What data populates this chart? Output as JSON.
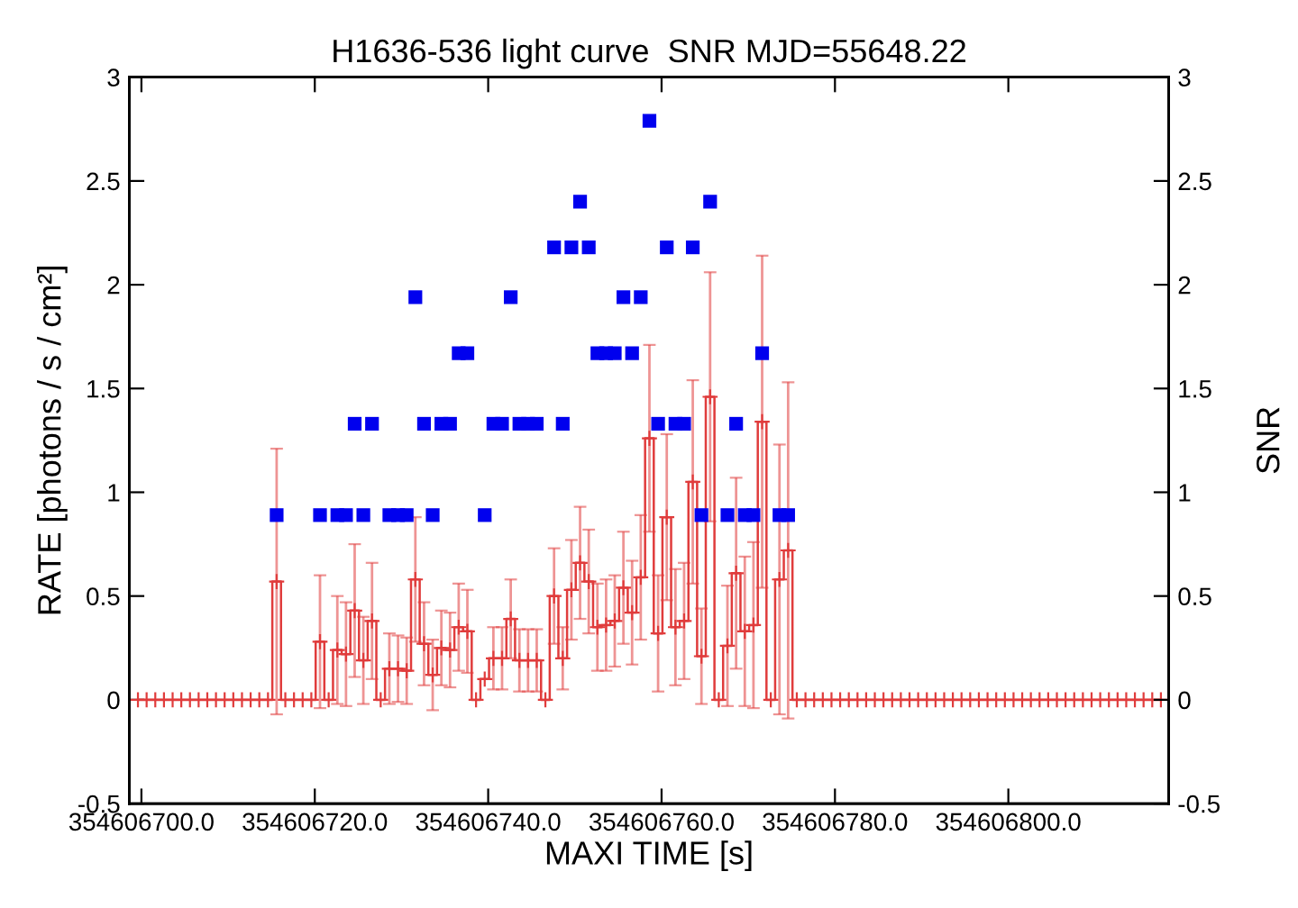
{
  "chart_data": {
    "type": "step",
    "title": "H1636-536 light curve  SNR MJD=55648.22",
    "xlabel": "MAXI TIME [s]",
    "ylabel": "RATE [photons / s / cm²]",
    "y2label": "SNR",
    "xlim": [
      354606698.6,
      354606818.5
    ],
    "xticks": [
      {
        "value": 354606700,
        "label": "354606700.0"
      },
      {
        "value": 354606720,
        "label": "354606720.0"
      },
      {
        "value": 354606740,
        "label": "354606740.0"
      },
      {
        "value": 354606760,
        "label": "354606760.0"
      },
      {
        "value": 354606780,
        "label": "354606780.0"
      },
      {
        "value": 354606800,
        "label": "354606800.0"
      }
    ],
    "ylim": [
      -0.5,
      3
    ],
    "yticks": [
      -0.5,
      0,
      0.5,
      1,
      1.5,
      2,
      2.5,
      3
    ],
    "y2lim": [
      -0.5,
      3
    ],
    "y2ticks": [
      -0.5,
      0,
      0.5,
      1,
      1.5,
      2,
      2.5,
      3
    ],
    "grid": false,
    "series": [
      {
        "color": "#e03c3c",
        "marker": "cross",
        "x": [
          354606699.6,
          354606700.6,
          354606701.6,
          354606702.6,
          354606703.6,
          354606704.6,
          354606705.6,
          354606706.6,
          354606707.6,
          354606708.6,
          354606709.6,
          354606710.6,
          354606711.6,
          354606712.6,
          354606713.6,
          354606714.6,
          354606715.6,
          354606716.6,
          354606717.6,
          354606718.6,
          354606719.6,
          354606720.6,
          354606721.6,
          354606722.6,
          354606723.6,
          354606724.6,
          354606725.6,
          354606726.6,
          354606727.6,
          354606728.6,
          354606729.6,
          354606730.6,
          354606731.6,
          354606732.6,
          354606733.6,
          354606734.6,
          354606735.6,
          354606736.6,
          354606737.6,
          354606738.6,
          354606739.6,
          354606740.6,
          354606741.6,
          354606742.6,
          354606743.6,
          354606744.6,
          354606745.6,
          354606746.6,
          354606747.6,
          354606748.6,
          354606749.6,
          354606750.6,
          354606751.6,
          354606752.6,
          354606753.6,
          354606754.6,
          354606755.6,
          354606756.6,
          354606757.6,
          354606758.6,
          354606759.6,
          354606760.6,
          354606761.6,
          354606762.6,
          354606763.6,
          354606764.6,
          354606765.6,
          354606766.6,
          354606767.6,
          354606768.6,
          354606769.6,
          354606770.6,
          354606771.6,
          354606772.6,
          354606773.6,
          354606774.6,
          354606775.6,
          354606776.6,
          354606777.6,
          354606778.6,
          354606779.6,
          354606780.6,
          354606781.6,
          354606782.6,
          354606783.6,
          354606784.6,
          354606785.6,
          354606786.6,
          354606787.6,
          354606788.6,
          354606789.6,
          354606790.6,
          354606791.6,
          354606792.6,
          354606793.6,
          354606794.6,
          354606795.6,
          354606796.6,
          354606797.6,
          354606798.6,
          354606799.6,
          354606800.6,
          354606801.6,
          354606802.6,
          354606803.6,
          354606804.6,
          354606805.6,
          354606806.6,
          354606807.6,
          354606808.6,
          354606809.6,
          354606810.6,
          354606811.6,
          354606812.6,
          354606813.6,
          354606814.6,
          354606815.6,
          354606816.6,
          354606817.6
        ],
        "values": [
          0,
          0,
          0,
          0,
          0,
          0,
          0,
          0,
          0,
          0,
          0,
          0,
          0,
          0,
          0,
          0,
          0.57,
          0,
          0,
          0,
          0,
          0.28,
          0,
          0.24,
          0.22,
          0.43,
          0.19,
          0.38,
          0,
          0.15,
          0.15,
          0.14,
          0.58,
          0.27,
          0.12,
          0.25,
          0.24,
          0.35,
          0.33,
          0,
          0.1,
          0.2,
          0.2,
          0.39,
          0.19,
          0.19,
          0.19,
          0,
          0.5,
          0.2,
          0.53,
          0.66,
          0.57,
          0.35,
          0.36,
          0.38,
          0.54,
          0.42,
          0.59,
          1.26,
          0.32,
          0.88,
          0.35,
          0.38,
          1.05,
          0.21,
          1.46,
          0,
          0.26,
          0.61,
          0.33,
          0.36,
          1.34,
          0,
          0.58,
          0.72,
          0,
          0,
          0,
          0,
          0,
          0,
          0,
          0,
          0,
          0,
          0,
          0,
          0,
          0,
          0,
          0,
          0,
          0,
          0,
          0,
          0,
          0,
          0,
          0,
          0,
          0,
          0,
          0,
          0,
          0,
          0,
          0,
          0,
          0,
          0,
          0,
          0,
          0,
          0,
          0,
          0,
          0,
          0
        ],
        "errors": [
          null,
          null,
          null,
          null,
          null,
          null,
          null,
          null,
          null,
          null,
          null,
          null,
          null,
          null,
          null,
          null,
          0.64,
          null,
          null,
          null,
          null,
          0.32,
          null,
          0.26,
          0.25,
          0.32,
          0.21,
          0.28,
          null,
          0.17,
          0.16,
          0.16,
          0.3,
          0.2,
          0.17,
          0.18,
          0.18,
          0.21,
          0.2,
          null,
          null,
          0.15,
          0.15,
          0.19,
          0.15,
          0.15,
          0.15,
          null,
          0.23,
          0.15,
          0.24,
          0.27,
          0.25,
          0.21,
          0.22,
          0.22,
          0.27,
          0.25,
          0.3,
          0.45,
          0.28,
          0.4,
          0.28,
          0.28,
          0.49,
          0.23,
          0.6,
          null,
          0.29,
          0.46,
          0.36,
          0.4,
          0.8,
          null,
          0.65,
          0.81,
          null,
          null,
          null,
          null,
          null,
          null,
          null,
          null,
          null,
          null,
          null,
          null,
          null,
          null,
          null,
          null,
          null,
          null,
          null,
          null,
          null,
          null,
          null,
          null,
          null,
          null,
          null,
          null,
          null,
          null,
          null,
          null,
          null,
          null,
          null,
          null,
          null,
          null,
          null,
          null,
          null,
          null,
          null
        ]
      },
      {
        "type": "scatter",
        "axis": "y2",
        "color": "#0000ee",
        "marker": "square",
        "x": [
          354606715.6,
          354606716.6,
          354606717.6,
          354606718.6,
          354606719.6,
          354606720.6,
          354606721.6,
          354606722.6,
          354606723.6,
          354606724.6,
          354606725.6,
          354606726.6,
          354606727.6,
          354606728.6,
          354606729.6,
          354606730.6,
          354606731.6,
          354606732.6,
          354606733.6,
          354606734.6,
          354606735.6,
          354606736.6,
          354606737.6,
          354606738.6,
          354606739.6,
          354606740.6,
          354606741.6,
          354606742.6,
          354606743.6,
          354606744.6,
          354606745.6,
          354606746.6,
          354606747.6,
          354606748.6,
          354606749.6,
          354606750.6,
          354606751.6,
          354606752.6,
          354606753.6,
          354606754.6,
          354606755.6,
          354606756.6,
          354606757.6,
          354606758.6,
          354606759.6,
          354606760.6,
          354606761.6,
          354606762.6,
          354606763.6,
          354606764.6,
          354606765.6,
          354606766.6,
          354606767.6,
          354606768.6,
          354606769.6,
          354606770.6,
          354606771.6,
          354606772.6,
          354606773.6,
          354606774.6
        ],
        "values": [
          0.89,
          null,
          null,
          null,
          null,
          0.89,
          null,
          0.89,
          0.89,
          1.33,
          0.89,
          1.33,
          null,
          0.89,
          0.89,
          0.89,
          1.94,
          1.33,
          0.89,
          1.33,
          1.33,
          1.67,
          1.67,
          null,
          0.89,
          1.33,
          1.33,
          1.94,
          1.33,
          1.33,
          1.33,
          null,
          2.18,
          1.33,
          2.18,
          2.4,
          2.18,
          1.67,
          1.67,
          1.67,
          1.94,
          1.67,
          1.94,
          2.79,
          1.33,
          2.18,
          1.33,
          1.33,
          2.18,
          0.89,
          2.4,
          null,
          0.89,
          1.33,
          0.89,
          0.89,
          1.67,
          null,
          0.89,
          0.89
        ]
      }
    ]
  }
}
